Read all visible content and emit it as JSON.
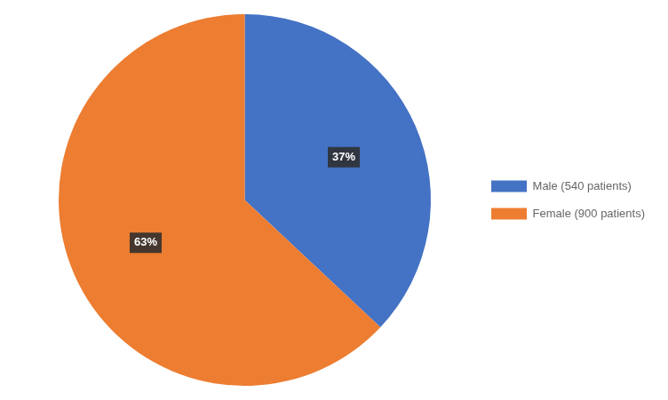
{
  "chart_data": {
    "type": "pie",
    "categories": [
      "Male (540 patients)",
      "Female (900 patients)"
    ],
    "values": [
      37,
      63
    ],
    "value_labels": [
      "37%",
      "63%"
    ],
    "colors": [
      "#4472C4",
      "#ED7D31"
    ],
    "data_labels": true,
    "legend": "right"
  }
}
